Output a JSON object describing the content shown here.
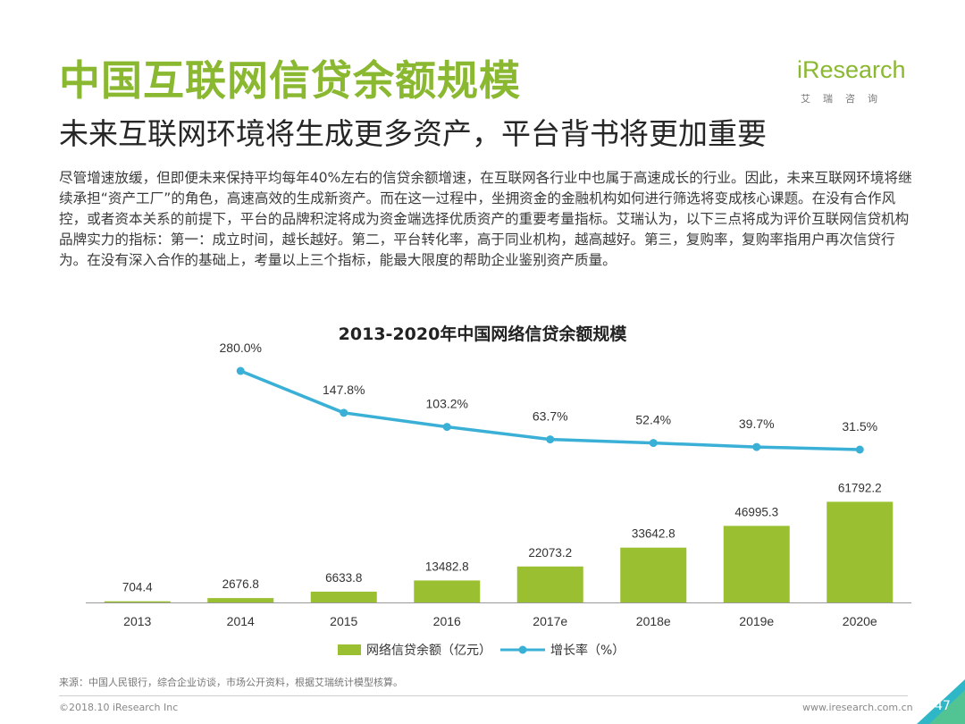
{
  "header": {
    "title": "中国互联网信贷余额规模",
    "subtitle": "未来互联网环境将生成更多资产，平台背书将更加重要"
  },
  "logo": {
    "text": "iResearch",
    "subtext": "艾瑞咨询"
  },
  "body_text": "尽管增速放缓，但即便未来保持平均每年40%左右的信贷余额增速，在互联网各行业中也属于高速成长的行业。因此，未来互联网环境将继续承担“资产工厂”的角色，高速高效的生成新资产。而在这一过程中，坐拥资金的金融机构如何进行筛选将变成核心课题。在没有合作风控，或者资本关系的前提下，平台的品牌积淀将成为资金端选择优质资产的重要考量指标。艾瑞认为，以下三点将成为评价互联网信贷机构品牌实力的指标：第一：成立时间，越长越好。第二，平台转化率，高于同业机构，越高越好。第三，复购率，复购率指用户再次信贷行为。在没有深入合作的基础上，考量以上三个指标，能最大限度的帮助企业鉴别资产质量。",
  "chart_data": {
    "type": "bar",
    "title": "2013-2020年中国网络信贷余额规模",
    "categories": [
      "2013",
      "2014",
      "2015",
      "2016",
      "2017e",
      "2018e",
      "2019e",
      "2020e"
    ],
    "series": [
      {
        "name": "网络信贷余额（亿元）",
        "type": "bar",
        "values": [
          704.4,
          2676.8,
          6633.8,
          13482.8,
          22073.2,
          33642.8,
          46995.3,
          61792.2
        ],
        "labels": [
          "704.4",
          "2676.8",
          "6633.8",
          "13482.8",
          "22073.2",
          "33642.8",
          "46995.3",
          "61792.2"
        ],
        "color": "#9ac031"
      },
      {
        "name": "增长率（%）",
        "type": "line",
        "values": [
          null,
          280.0,
          147.8,
          103.2,
          63.7,
          52.4,
          39.7,
          31.5
        ],
        "labels": [
          "",
          "280.0%",
          "147.8%",
          "103.2%",
          "63.7%",
          "52.4%",
          "39.7%",
          "31.5%"
        ],
        "color": "#3ab0d6"
      }
    ],
    "xlabel": "",
    "ylabel": "",
    "grid": false,
    "legend_position": "bottom"
  },
  "footer": {
    "source": "来源：中国人民银行，综合企业访谈，市场公开资料，根据艾瑞统计模型核算。",
    "copyright": "©2018.10 iResearch Inc",
    "url": "www.iresearch.com.cn",
    "page": "47"
  },
  "colors": {
    "brand_green": "#8ab830",
    "bar_green": "#9ac031",
    "line_blue": "#3ab0d6",
    "corner_teal": "#2fb7c8"
  }
}
